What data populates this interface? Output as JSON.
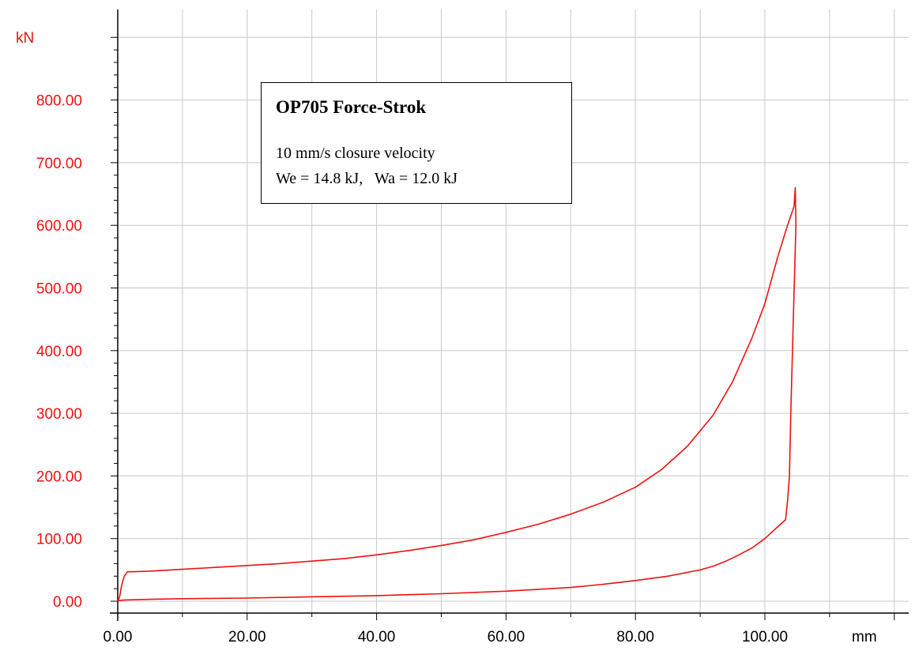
{
  "colors": {
    "curve": "#ee1111",
    "axis_text": "#ee1111",
    "grid": "#c8c8c8",
    "axis": "#000000"
  },
  "chart_data": {
    "type": "line",
    "title": "OP705 Force-Strok",
    "annotations": [
      "10 mm/s closure velocity",
      "We = 14.8 kJ,   Wa = 12.0 kJ"
    ],
    "xlabel": "mm",
    "ylabel": "kN",
    "xlim": [
      0,
      120
    ],
    "ylim": [
      0,
      900
    ],
    "grid": true,
    "x_ticks": [
      "0.00",
      "20.00",
      "40.00",
      "60.00",
      "80.00",
      "100.00"
    ],
    "y_ticks": [
      "0.00",
      "100.00",
      "200.00",
      "300.00",
      "400.00",
      "500.00",
      "600.00",
      "700.00",
      "800.00"
    ],
    "series": [
      {
        "points": [
          [
            0,
            0
          ],
          [
            0.3,
            8
          ],
          [
            0.6,
            25
          ],
          [
            1.0,
            40
          ],
          [
            1.5,
            47
          ],
          [
            2,
            47
          ],
          [
            5,
            48
          ],
          [
            10,
            51
          ],
          [
            15,
            54
          ],
          [
            20,
            57
          ],
          [
            25,
            60
          ],
          [
            30,
            64
          ],
          [
            35,
            68
          ],
          [
            40,
            74
          ],
          [
            45,
            81
          ],
          [
            50,
            89
          ],
          [
            55,
            98
          ],
          [
            60,
            110
          ],
          [
            65,
            123
          ],
          [
            70,
            139
          ],
          [
            75,
            158
          ],
          [
            80,
            182
          ],
          [
            84,
            210
          ],
          [
            88,
            247
          ],
          [
            92,
            297
          ],
          [
            95,
            350
          ],
          [
            98,
            420
          ],
          [
            100,
            475
          ],
          [
            102,
            550
          ],
          [
            103.5,
            600
          ],
          [
            104.5,
            630
          ],
          [
            104.7,
            660
          ],
          [
            104.8,
            600
          ],
          [
            104.4,
            450
          ],
          [
            104.0,
            300
          ],
          [
            103.8,
            200
          ],
          [
            103.5,
            160
          ],
          [
            103.2,
            130
          ],
          [
            102,
            119
          ],
          [
            100,
            100
          ],
          [
            98,
            85
          ],
          [
            96,
            74
          ],
          [
            94,
            64
          ],
          [
            92,
            56
          ],
          [
            90,
            50
          ],
          [
            85,
            40
          ],
          [
            80,
            33
          ],
          [
            75,
            27
          ],
          [
            70,
            22
          ],
          [
            65,
            19
          ],
          [
            60,
            16
          ],
          [
            50,
            12
          ],
          [
            40,
            9
          ],
          [
            30,
            7
          ],
          [
            20,
            5
          ],
          [
            10,
            4
          ],
          [
            5,
            3
          ],
          [
            1,
            2
          ],
          [
            0,
            1
          ]
        ]
      }
    ]
  }
}
